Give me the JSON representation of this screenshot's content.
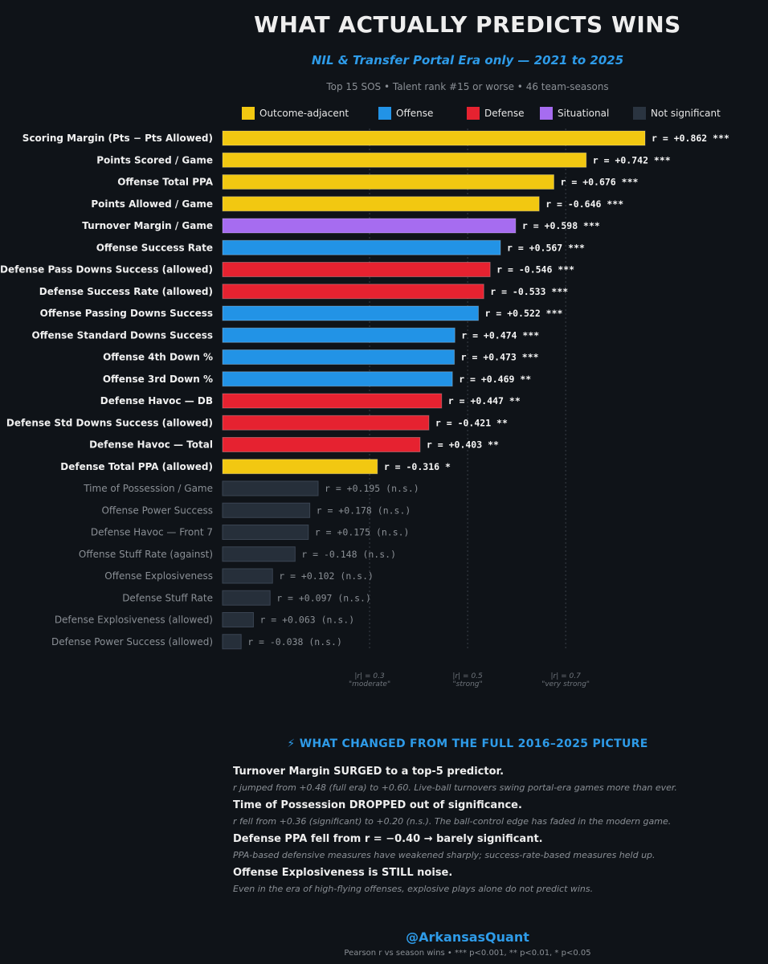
{
  "header": {
    "title": "WHAT ACTUALLY PREDICTS WINS",
    "subtitle": "NIL & Transfer Portal Era only — 2021 to 2025",
    "meta": "Top 15 SOS  •  Talent rank #15 or worse  •  46 team-seasons"
  },
  "legend": [
    {
      "label": "Outcome-adjacent",
      "color": "#f2c811"
    },
    {
      "label": "Offense",
      "color": "#2293e6"
    },
    {
      "label": "Defense",
      "color": "#e62230"
    },
    {
      "label": "Situational",
      "color": "#a66cf0"
    },
    {
      "label": "Not significant",
      "color": "#2a3440"
    }
  ],
  "colors": {
    "outcome": "#f2c811",
    "offense": "#2293e6",
    "defense": "#e62230",
    "situational": "#a66cf0",
    "ns": "#262f3a",
    "ns_stroke": "#3a4452",
    "background": "#0f1318",
    "accent": "#2e9be8"
  },
  "chart_data": {
    "type": "bar",
    "orientation": "horizontal",
    "value_axis": "|r|",
    "xlim": [
      0,
      0.862
    ],
    "reference_lines": [
      {
        "value": 0.3,
        "label": "|r| = 0.3",
        "sublabel": "\"moderate\""
      },
      {
        "value": 0.5,
        "label": "|r| = 0.5",
        "sublabel": "\"strong\""
      },
      {
        "value": 0.7,
        "label": "|r| = 0.7",
        "sublabel": "\"very strong\""
      }
    ],
    "bars": [
      {
        "label": "Scoring Margin (Pts − Pts Allowed)",
        "r": 0.862,
        "value_label": "r = +0.862 ***",
        "category": "outcome",
        "significant": true
      },
      {
        "label": "Points Scored / Game",
        "r": 0.742,
        "value_label": "r = +0.742 ***",
        "category": "outcome",
        "significant": true
      },
      {
        "label": "Offense Total PPA",
        "r": 0.676,
        "value_label": "r = +0.676 ***",
        "category": "outcome",
        "significant": true
      },
      {
        "label": "Points Allowed / Game",
        "r": -0.646,
        "value_label": "r = -0.646 ***",
        "category": "outcome",
        "significant": true
      },
      {
        "label": "Turnover Margin / Game",
        "r": 0.598,
        "value_label": "r = +0.598 ***",
        "category": "situational",
        "significant": true
      },
      {
        "label": "Offense Success Rate",
        "r": 0.567,
        "value_label": "r = +0.567 ***",
        "category": "offense",
        "significant": true
      },
      {
        "label": "Defense Pass Downs Success (allowed)",
        "r": -0.546,
        "value_label": "r = -0.546 ***",
        "category": "defense",
        "significant": true
      },
      {
        "label": "Defense Success Rate (allowed)",
        "r": -0.533,
        "value_label": "r = -0.533 ***",
        "category": "defense",
        "significant": true
      },
      {
        "label": "Offense Passing Downs Success",
        "r": 0.522,
        "value_label": "r = +0.522 ***",
        "category": "offense",
        "significant": true
      },
      {
        "label": "Offense Standard Downs Success",
        "r": 0.474,
        "value_label": "r = +0.474 ***",
        "category": "offense",
        "significant": true
      },
      {
        "label": "Offense 4th Down %",
        "r": 0.473,
        "value_label": "r = +0.473 ***",
        "category": "offense",
        "significant": true
      },
      {
        "label": "Offense 3rd Down %",
        "r": 0.469,
        "value_label": "r = +0.469 **",
        "category": "offense",
        "significant": true
      },
      {
        "label": "Defense Havoc — DB",
        "r": 0.447,
        "value_label": "r = +0.447 **",
        "category": "defense",
        "significant": true
      },
      {
        "label": "Defense Std Downs Success (allowed)",
        "r": -0.421,
        "value_label": "r = -0.421 **",
        "category": "defense",
        "significant": true
      },
      {
        "label": "Defense Havoc — Total",
        "r": 0.403,
        "value_label": "r = +0.403 **",
        "category": "defense",
        "significant": true
      },
      {
        "label": "Defense Total PPA (allowed)",
        "r": -0.316,
        "value_label": "r = -0.316 *",
        "category": "outcome",
        "significant": true
      },
      {
        "label": "Time of Possession / Game",
        "r": 0.195,
        "value_label": "r = +0.195 (n.s.)",
        "category": "ns",
        "significant": false
      },
      {
        "label": "Offense Power Success",
        "r": 0.178,
        "value_label": "r = +0.178 (n.s.)",
        "category": "ns",
        "significant": false
      },
      {
        "label": "Defense Havoc — Front 7",
        "r": 0.175,
        "value_label": "r = +0.175 (n.s.)",
        "category": "ns",
        "significant": false
      },
      {
        "label": "Offense Stuff Rate (against)",
        "r": -0.148,
        "value_label": "r = -0.148 (n.s.)",
        "category": "ns",
        "significant": false
      },
      {
        "label": "Offense Explosiveness",
        "r": 0.102,
        "value_label": "r = +0.102 (n.s.)",
        "category": "ns",
        "significant": false
      },
      {
        "label": "Defense Stuff Rate",
        "r": 0.097,
        "value_label": "r = +0.097 (n.s.)",
        "category": "ns",
        "significant": false
      },
      {
        "label": "Defense Explosiveness (allowed)",
        "r": 0.063,
        "value_label": "r = +0.063 (n.s.)",
        "category": "ns",
        "significant": false
      },
      {
        "label": "Defense Power Success (allowed)",
        "r": -0.038,
        "value_label": "r = -0.038 (n.s.)",
        "category": "ns",
        "significant": false
      }
    ]
  },
  "changes": {
    "heading": "⚡ WHAT CHANGED FROM THE FULL 2016–2025 PICTURE",
    "items": [
      {
        "headline": "Turnover Margin SURGED to a top-5 predictor.",
        "detail": "r jumped from +0.48 (full era) to +0.60. Live-ball turnovers swing portal-era games more than ever."
      },
      {
        "headline": "Time of Possession DROPPED out of significance.",
        "detail": "r fell from +0.36 (significant) to +0.20 (n.s.). The ball-control edge has faded in the modern game."
      },
      {
        "headline": "Defense PPA fell from r = −0.40 → barely significant.",
        "detail": "PPA-based defensive measures have weakened sharply; success-rate-based measures held up."
      },
      {
        "headline": "Offense Explosiveness is STILL noise.",
        "detail": "Even in the era of high-flying offenses, explosive plays alone do not predict wins."
      }
    ]
  },
  "footer": {
    "handle": "@ArkansasQuant",
    "caption": "Pearson r vs season wins  •  *** p<0.001, ** p<0.01, * p<0.05"
  }
}
